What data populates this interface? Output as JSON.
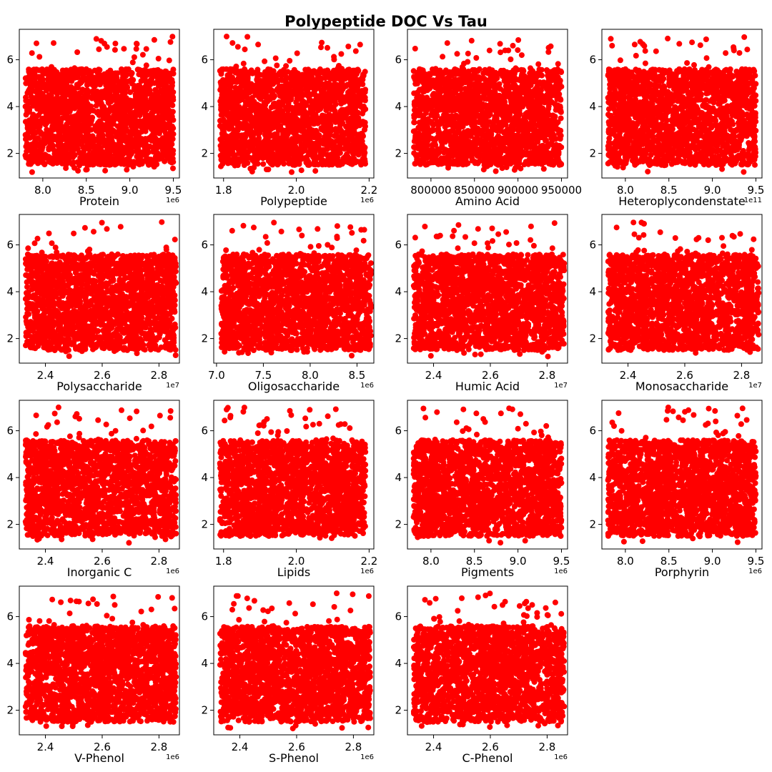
{
  "figure": {
    "title": "Polypeptide DOC Vs Tau"
  },
  "colors": {
    "marker": "#ff0000",
    "axes": "#000000"
  },
  "chart_data": [
    {
      "type": "scatter",
      "xlabel": "Protein",
      "ylabel": "",
      "offset": "1e6",
      "xlim": [
        7.73,
        9.57
      ],
      "ylim": [
        0.95,
        7.3
      ],
      "xticks": [
        8.0,
        8.5,
        9.0,
        9.5
      ],
      "xticklabels": [
        "8.0",
        "8.5",
        "9.0",
        "9.5"
      ],
      "yticks": [
        2,
        4,
        6
      ],
      "yticklabels": [
        "2",
        "4",
        "6"
      ],
      "xdata": [
        7.8,
        9.5
      ],
      "ydata": [
        1.2,
        7.0
      ],
      "points": 2000,
      "seed": 11
    },
    {
      "type": "scatter",
      "xlabel": "Polypeptide",
      "ylabel": "",
      "offset": "1e6",
      "xlim": [
        1.773,
        2.213
      ],
      "ylim": [
        0.95,
        7.3
      ],
      "xticks": [
        1.8,
        2.0,
        2.2
      ],
      "xticklabels": [
        "1.8",
        "2.0",
        "2.2"
      ],
      "yticks": [
        2,
        4,
        6
      ],
      "yticklabels": [
        "2",
        "4",
        "6"
      ],
      "xdata": [
        1.79,
        2.19
      ],
      "ydata": [
        1.2,
        7.0
      ],
      "points": 2000,
      "seed": 23
    },
    {
      "type": "scatter",
      "xlabel": "Amino Acid",
      "ylabel": "",
      "offset": "",
      "xlim": [
        773000,
        957000
      ],
      "ylim": [
        0.95,
        7.3
      ],
      "xticks": [
        800000,
        850000,
        900000,
        950000
      ],
      "xticklabels": [
        "800000",
        "850000",
        "900000",
        "950000"
      ],
      "yticks": [
        2,
        4,
        6
      ],
      "yticklabels": [
        "2",
        "4",
        "6"
      ],
      "xdata": [
        780000,
        950000
      ],
      "ydata": [
        1.2,
        7.0
      ],
      "points": 2000,
      "seed": 37
    },
    {
      "type": "scatter",
      "xlabel": "Heteroplycondenstate",
      "ylabel": "",
      "offset": "1e11",
      "xlim": [
        7.73,
        9.57
      ],
      "ylim": [
        0.95,
        7.3
      ],
      "xticks": [
        8.0,
        8.5,
        9.0,
        9.5
      ],
      "xticklabels": [
        "8.0",
        "8.5",
        "9.0",
        "9.5"
      ],
      "yticks": [
        2,
        4,
        6
      ],
      "yticklabels": [
        "2",
        "4",
        "6"
      ],
      "xdata": [
        7.8,
        9.5
      ],
      "ydata": [
        1.2,
        7.0
      ],
      "points": 2000,
      "seed": 41
    },
    {
      "type": "scatter",
      "xlabel": "Polysaccharide",
      "ylabel": "",
      "offset": "1e7",
      "xlim": [
        2.308,
        2.872
      ],
      "ylim": [
        0.95,
        7.3
      ],
      "xticks": [
        2.4,
        2.6,
        2.8
      ],
      "xticklabels": [
        "2.4",
        "2.6",
        "2.8"
      ],
      "yticks": [
        2,
        4,
        6
      ],
      "yticklabels": [
        "2",
        "4",
        "6"
      ],
      "xdata": [
        2.33,
        2.86
      ],
      "ydata": [
        1.2,
        7.0
      ],
      "points": 2000,
      "seed": 53
    },
    {
      "type": "scatter",
      "xlabel": "Oligosaccharide",
      "ylabel": "",
      "offset": "1e6",
      "xlim": [
        6.97,
        8.68
      ],
      "ylim": [
        0.95,
        7.3
      ],
      "xticks": [
        7.0,
        7.5,
        8.0,
        8.5
      ],
      "xticklabels": [
        "7.0",
        "7.5",
        "8.0",
        "8.5"
      ],
      "yticks": [
        2,
        4,
        6
      ],
      "yticklabels": [
        "2",
        "4",
        "6"
      ],
      "xdata": [
        7.05,
        8.65
      ],
      "ydata": [
        1.2,
        7.0
      ],
      "points": 2000,
      "seed": 67
    },
    {
      "type": "scatter",
      "xlabel": "Humic Acid",
      "ylabel": "",
      "offset": "1e7",
      "xlim": [
        2.308,
        2.872
      ],
      "ylim": [
        0.95,
        7.3
      ],
      "xticks": [
        2.4,
        2.6,
        2.8
      ],
      "xticklabels": [
        "2.4",
        "2.6",
        "2.8"
      ],
      "yticks": [
        2,
        4,
        6
      ],
      "yticklabels": [
        "2",
        "4",
        "6"
      ],
      "xdata": [
        2.33,
        2.86
      ],
      "ydata": [
        1.2,
        7.0
      ],
      "points": 2000,
      "seed": 71
    },
    {
      "type": "scatter",
      "xlabel": "Monosaccharide",
      "ylabel": "",
      "offset": "1e7",
      "xlim": [
        2.308,
        2.872
      ],
      "ylim": [
        0.95,
        7.3
      ],
      "xticks": [
        2.4,
        2.6,
        2.8
      ],
      "xticklabels": [
        "2.4",
        "2.6",
        "2.8"
      ],
      "yticks": [
        2,
        4,
        6
      ],
      "yticklabels": [
        "2",
        "4",
        "6"
      ],
      "xdata": [
        2.33,
        2.86
      ],
      "ydata": [
        1.2,
        7.0
      ],
      "points": 2000,
      "seed": 83
    },
    {
      "type": "scatter",
      "xlabel": "Inorganic C",
      "ylabel": "",
      "offset": "1e6",
      "xlim": [
        2.308,
        2.872
      ],
      "ylim": [
        0.95,
        7.3
      ],
      "xticks": [
        2.4,
        2.6,
        2.8
      ],
      "xticklabels": [
        "2.4",
        "2.6",
        "2.8"
      ],
      "yticks": [
        2,
        4,
        6
      ],
      "yticklabels": [
        "2",
        "4",
        "6"
      ],
      "xdata": [
        2.33,
        2.86
      ],
      "ydata": [
        1.2,
        7.0
      ],
      "points": 2000,
      "seed": 97
    },
    {
      "type": "scatter",
      "xlabel": "Lipids",
      "ylabel": "",
      "offset": "1e6",
      "xlim": [
        1.773,
        2.213
      ],
      "ylim": [
        0.95,
        7.3
      ],
      "xticks": [
        1.8,
        2.0,
        2.2
      ],
      "xticklabels": [
        "1.8",
        "2.0",
        "2.2"
      ],
      "yticks": [
        2,
        4,
        6
      ],
      "yticklabels": [
        "2",
        "4",
        "6"
      ],
      "xdata": [
        1.79,
        2.19
      ],
      "ydata": [
        1.2,
        7.0
      ],
      "points": 2000,
      "seed": 101
    },
    {
      "type": "scatter",
      "xlabel": "Pigments",
      "ylabel": "",
      "offset": "1e6",
      "xlim": [
        7.73,
        9.57
      ],
      "ylim": [
        0.95,
        7.3
      ],
      "xticks": [
        8.0,
        8.5,
        9.0,
        9.5
      ],
      "xticklabels": [
        "8.0",
        "8.5",
        "9.0",
        "9.5"
      ],
      "yticks": [
        2,
        4,
        6
      ],
      "yticklabels": [
        "2",
        "4",
        "6"
      ],
      "xdata": [
        7.8,
        9.5
      ],
      "ydata": [
        1.2,
        7.0
      ],
      "points": 2000,
      "seed": 113
    },
    {
      "type": "scatter",
      "xlabel": "Porphyrin",
      "ylabel": "",
      "offset": "1e6",
      "xlim": [
        7.73,
        9.57
      ],
      "ylim": [
        0.95,
        7.3
      ],
      "xticks": [
        8.0,
        8.5,
        9.0,
        9.5
      ],
      "xticklabels": [
        "8.0",
        "8.5",
        "9.0",
        "9.5"
      ],
      "yticks": [
        2,
        4,
        6
      ],
      "yticklabels": [
        "2",
        "4",
        "6"
      ],
      "xdata": [
        7.8,
        9.5
      ],
      "ydata": [
        1.2,
        7.0
      ],
      "points": 2000,
      "seed": 127
    },
    {
      "type": "scatter",
      "xlabel": "V-Phenol",
      "ylabel": "",
      "offset": "1e6",
      "xlim": [
        2.308,
        2.872
      ],
      "ylim": [
        0.95,
        7.3
      ],
      "xticks": [
        2.4,
        2.6,
        2.8
      ],
      "xticklabels": [
        "2.4",
        "2.6",
        "2.8"
      ],
      "yticks": [
        2,
        4,
        6
      ],
      "yticklabels": [
        "2",
        "4",
        "6"
      ],
      "xdata": [
        2.33,
        2.86
      ],
      "ydata": [
        1.2,
        7.0
      ],
      "points": 2000,
      "seed": 131
    },
    {
      "type": "scatter",
      "xlabel": "S-Phenol",
      "ylabel": "",
      "offset": "1e6",
      "xlim": [
        2.308,
        2.872
      ],
      "ylim": [
        0.95,
        7.3
      ],
      "xticks": [
        2.4,
        2.6,
        2.8
      ],
      "xticklabels": [
        "2.4",
        "2.6",
        "2.8"
      ],
      "yticks": [
        2,
        4,
        6
      ],
      "yticklabels": [
        "2",
        "4",
        "6"
      ],
      "xdata": [
        2.33,
        2.86
      ],
      "ydata": [
        1.2,
        7.0
      ],
      "points": 2000,
      "seed": 149
    },
    {
      "type": "scatter",
      "xlabel": "C-Phenol",
      "ylabel": "",
      "offset": "1e6",
      "xlim": [
        2.308,
        2.872
      ],
      "ylim": [
        0.95,
        7.3
      ],
      "xticks": [
        2.4,
        2.6,
        2.8
      ],
      "xticklabels": [
        "2.4",
        "2.6",
        "2.8"
      ],
      "yticks": [
        2,
        4,
        6
      ],
      "yticklabels": [
        "2",
        "4",
        "6"
      ],
      "xdata": [
        2.33,
        2.86
      ],
      "ydata": [
        1.2,
        7.0
      ],
      "points": 2000,
      "seed": 157
    }
  ]
}
